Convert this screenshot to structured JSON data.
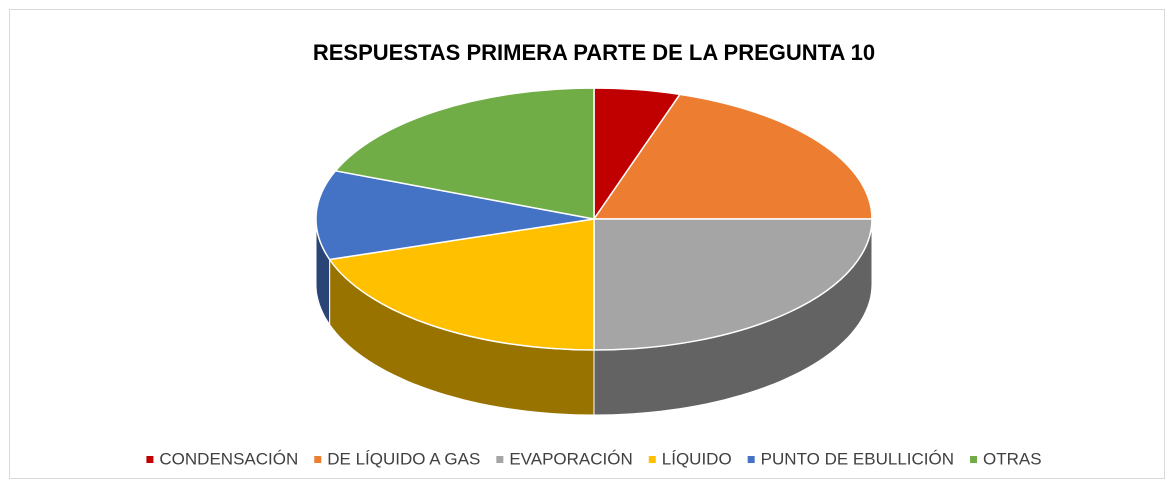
{
  "chart_data": {
    "type": "pie",
    "title": "RESPUESTAS PRIMERA PARTE DE LA PREGUNTA 10",
    "categories": [
      "CONDENSACIÓN",
      "DE LÍQUIDO A GAS",
      "EVAPORACIÓN",
      "LÍQUIDO",
      "PUNTO DE EBULLICIÓN",
      "OTRAS"
    ],
    "values": [
      5,
      20,
      25,
      20,
      11,
      19
    ],
    "colors": [
      "#c00000",
      "#ed7d31",
      "#a5a5a5",
      "#ffc000",
      "#4472c4",
      "#70ad47"
    ],
    "legend": "bottom"
  }
}
